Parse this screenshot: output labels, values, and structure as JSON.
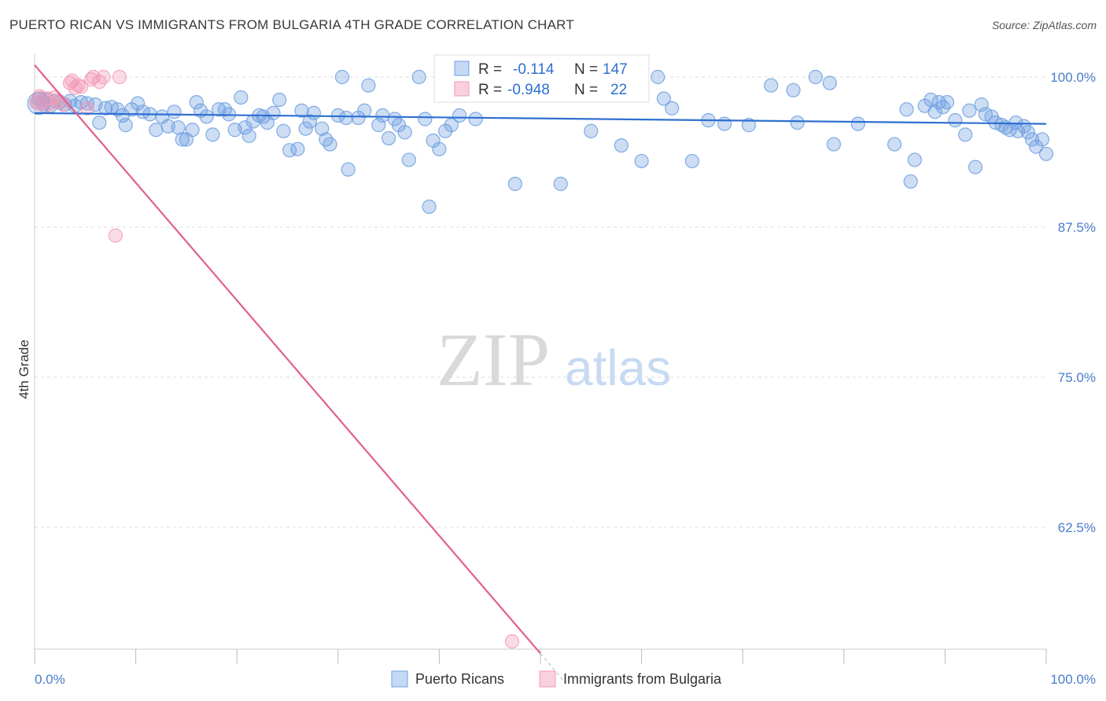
{
  "title": "PUERTO RICAN VS IMMIGRANTS FROM BULGARIA 4TH GRADE CORRELATION CHART",
  "source": "Source: ZipAtlas.com",
  "watermark": {
    "zip": "ZIP",
    "atlas": "atlas"
  },
  "colors": {
    "blue": "#6d9fe0",
    "blue_line": "#2f6fd0",
    "pink": "#f29bb6",
    "pink_line": "#e0608e",
    "axis_text": "#4a7cc9",
    "grid": "#dddddd"
  },
  "stats": [
    {
      "r_label": "R =",
      "r_value": "-0.114",
      "n_label": "N =",
      "n_value": "147"
    },
    {
      "r_label": "R =",
      "r_value": "-0.948",
      "n_label": "N =",
      "n_value": "22"
    }
  ],
  "chart_data": {
    "type": "scatter",
    "title": "PUERTO RICAN VS IMMIGRANTS FROM BULGARIA 4TH GRADE CORRELATION CHART",
    "xlabel": "",
    "ylabel": "4th Grade",
    "xlim": [
      0,
      100
    ],
    "ylim": [
      48,
      102
    ],
    "x_tick_labels": [
      "0.0%",
      "100.0%"
    ],
    "y_ticks": [
      100,
      87.5,
      75,
      62.5
    ],
    "y_tick_labels": [
      "100.0%",
      "87.5%",
      "75.0%",
      "62.5%"
    ],
    "grid": true,
    "legend_position": "bottom-center",
    "series": [
      {
        "name": "Puerto Ricans",
        "trend": [
          [
            0,
            97.0
          ],
          [
            100,
            96.1
          ]
        ],
        "points": [
          [
            0.4,
            98.2
          ],
          [
            0.8,
            97.8
          ],
          [
            1.2,
            98.1
          ],
          [
            1.6,
            97.6
          ],
          [
            2.0,
            98.0
          ],
          [
            2.5,
            97.9
          ],
          [
            3.0,
            97.7
          ],
          [
            3.5,
            98.0
          ],
          [
            4.0,
            97.6
          ],
          [
            4.6,
            97.9
          ],
          [
            5.2,
            97.8
          ],
          [
            6.0,
            97.7
          ],
          [
            6.4,
            96.2
          ],
          [
            7.0,
            97.4
          ],
          [
            7.6,
            97.5
          ],
          [
            8.2,
            97.3
          ],
          [
            8.7,
            96.8
          ],
          [
            9.0,
            96.0
          ],
          [
            9.6,
            97.3
          ],
          [
            10.2,
            97.8
          ],
          [
            10.7,
            97.1
          ],
          [
            11.4,
            96.9
          ],
          [
            12.0,
            95.6
          ],
          [
            12.6,
            96.7
          ],
          [
            13.2,
            95.9
          ],
          [
            13.8,
            97.1
          ],
          [
            14.2,
            95.8
          ],
          [
            14.6,
            94.8
          ],
          [
            15.0,
            94.8
          ],
          [
            15.6,
            95.6
          ],
          [
            16.0,
            97.9
          ],
          [
            16.4,
            97.2
          ],
          [
            17.0,
            96.7
          ],
          [
            17.6,
            95.2
          ],
          [
            18.2,
            97.3
          ],
          [
            18.8,
            97.3
          ],
          [
            19.2,
            96.9
          ],
          [
            19.8,
            95.6
          ],
          [
            20.4,
            98.3
          ],
          [
            20.8,
            95.8
          ],
          [
            21.2,
            95.1
          ],
          [
            21.6,
            96.3
          ],
          [
            22.2,
            96.8
          ],
          [
            22.6,
            96.7
          ],
          [
            23.0,
            96.2
          ],
          [
            23.6,
            97.0
          ],
          [
            24.2,
            98.1
          ],
          [
            24.6,
            95.5
          ],
          [
            25.2,
            93.9
          ],
          [
            26.0,
            94.0
          ],
          [
            26.4,
            97.2
          ],
          [
            26.8,
            95.7
          ],
          [
            27.2,
            96.3
          ],
          [
            27.6,
            97.0
          ],
          [
            28.4,
            95.7
          ],
          [
            28.8,
            94.8
          ],
          [
            29.2,
            94.4
          ],
          [
            30.0,
            96.8
          ],
          [
            30.4,
            100.0
          ],
          [
            30.8,
            96.6
          ],
          [
            31.0,
            92.3
          ],
          [
            32.0,
            96.6
          ],
          [
            32.6,
            97.2
          ],
          [
            33.0,
            99.3
          ],
          [
            34.0,
            96.0
          ],
          [
            34.4,
            96.8
          ],
          [
            35.0,
            94.9
          ],
          [
            35.6,
            96.5
          ],
          [
            36.0,
            96.0
          ],
          [
            36.6,
            95.4
          ],
          [
            37.0,
            93.1
          ],
          [
            38.0,
            100.0
          ],
          [
            38.6,
            96.5
          ],
          [
            39.0,
            89.2
          ],
          [
            39.4,
            94.7
          ],
          [
            40.0,
            94.0
          ],
          [
            40.6,
            95.5
          ],
          [
            41.2,
            96.0
          ],
          [
            42.0,
            96.8
          ],
          [
            43.0,
            100.0
          ],
          [
            43.6,
            96.5
          ],
          [
            44.0,
            100.0
          ],
          [
            46.0,
            100.0
          ],
          [
            47.5,
            91.1
          ],
          [
            50.0,
            100.0
          ],
          [
            50.6,
            100.0
          ],
          [
            52.0,
            91.1
          ],
          [
            55.0,
            95.5
          ],
          [
            56.4,
            100.0
          ],
          [
            58.0,
            94.3
          ],
          [
            59.8,
            100.0
          ],
          [
            60.0,
            93.0
          ],
          [
            61.6,
            100.0
          ],
          [
            62.2,
            98.2
          ],
          [
            63.0,
            97.4
          ],
          [
            65.0,
            93.0
          ],
          [
            66.6,
            96.4
          ],
          [
            68.2,
            96.1
          ],
          [
            70.6,
            96.0
          ],
          [
            72.8,
            99.3
          ],
          [
            75.0,
            98.9
          ],
          [
            75.4,
            96.2
          ],
          [
            77.2,
            100.0
          ],
          [
            78.6,
            99.5
          ],
          [
            79.0,
            94.4
          ],
          [
            81.4,
            96.1
          ],
          [
            85.0,
            94.4
          ],
          [
            86.2,
            97.3
          ],
          [
            86.6,
            91.3
          ],
          [
            87.0,
            93.1
          ],
          [
            88.0,
            97.6
          ],
          [
            88.6,
            98.1
          ],
          [
            89.0,
            97.1
          ],
          [
            89.4,
            97.9
          ],
          [
            89.8,
            97.5
          ],
          [
            90.2,
            97.9
          ],
          [
            91.0,
            96.4
          ],
          [
            92.0,
            95.2
          ],
          [
            92.4,
            97.2
          ],
          [
            93.0,
            92.5
          ],
          [
            93.6,
            97.7
          ],
          [
            94.0,
            96.9
          ],
          [
            94.6,
            96.7
          ],
          [
            95.0,
            96.2
          ],
          [
            95.6,
            96.0
          ],
          [
            96.0,
            95.8
          ],
          [
            96.4,
            95.6
          ],
          [
            97.0,
            96.2
          ],
          [
            97.2,
            95.5
          ],
          [
            97.8,
            95.9
          ],
          [
            98.2,
            95.4
          ],
          [
            98.6,
            94.8
          ],
          [
            99.0,
            94.2
          ],
          [
            99.6,
            94.8
          ],
          [
            100.0,
            93.6
          ]
        ]
      },
      {
        "name": "Immigrants from Bulgaria",
        "trend": [
          [
            0,
            101.0
          ],
          [
            50,
            52.0
          ]
        ],
        "trend_dashed": [
          [
            50,
            52.0
          ],
          [
            52.5,
            49.5
          ]
        ],
        "points": [
          [
            0.2,
            97.9
          ],
          [
            0.5,
            98.4
          ],
          [
            0.8,
            98.0
          ],
          [
            1.0,
            97.6
          ],
          [
            1.3,
            98.2
          ],
          [
            1.6,
            97.8
          ],
          [
            2.0,
            98.3
          ],
          [
            2.4,
            98.0
          ],
          [
            2.8,
            97.7
          ],
          [
            3.5,
            99.5
          ],
          [
            3.7,
            99.7
          ],
          [
            4.0,
            99.1
          ],
          [
            4.3,
            99.3
          ],
          [
            4.6,
            99.2
          ],
          [
            5.2,
            97.4
          ],
          [
            5.6,
            99.8
          ],
          [
            5.8,
            100.0
          ],
          [
            6.4,
            99.6
          ],
          [
            6.8,
            100.0
          ],
          [
            8.4,
            100.0
          ],
          [
            8.0,
            86.8
          ],
          [
            47.2,
            53.0
          ]
        ]
      }
    ]
  },
  "legend": [
    {
      "label": "Puerto Ricans"
    },
    {
      "label": "Immigrants from Bulgaria"
    }
  ]
}
